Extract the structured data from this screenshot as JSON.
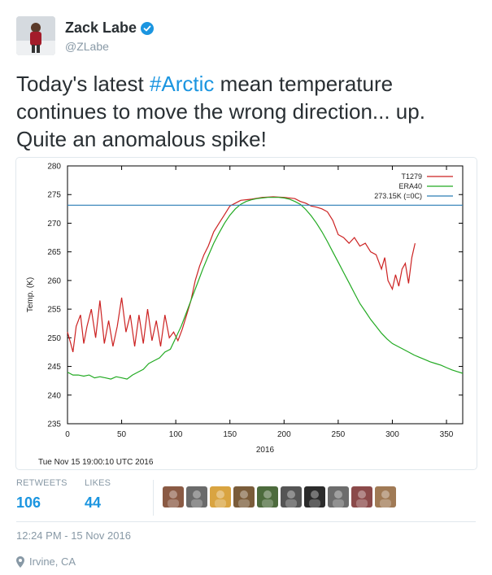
{
  "user": {
    "name": "Zack Labe",
    "handle": "@ZLabe",
    "verified": true,
    "avatar_icon": "user-avatar"
  },
  "tweet": {
    "text_before": "Today's latest",
    "hashtag": "#Arctic",
    "text_after": "mean temperature continues to move the wrong direction... up. Quite an anomalous spike!"
  },
  "media": {
    "timestamp": "Tue Nov 15 19:00:10 UTC 2016"
  },
  "chart_data": {
    "type": "line",
    "xlabel": "2016",
    "ylabel": "Temp. (K)",
    "xlim": [
      0,
      365
    ],
    "ylim": [
      235,
      280
    ],
    "xticks": [
      0,
      50,
      100,
      150,
      200,
      250,
      300,
      350
    ],
    "yticks": [
      235,
      240,
      245,
      250,
      255,
      260,
      265,
      270,
      275,
      280
    ],
    "legend_position": "top-right",
    "series": [
      {
        "name": "T1279",
        "color": "#cc2222",
        "x": [
          0,
          3,
          5,
          8,
          12,
          15,
          18,
          22,
          26,
          30,
          34,
          38,
          42,
          46,
          50,
          54,
          58,
          62,
          66,
          70,
          74,
          78,
          82,
          86,
          90,
          94,
          98,
          102,
          106,
          110,
          114,
          118,
          122,
          126,
          130,
          135,
          140,
          145,
          150,
          155,
          160,
          170,
          180,
          190,
          200,
          210,
          215,
          220,
          225,
          230,
          235,
          240,
          245,
          250,
          255,
          260,
          265,
          270,
          275,
          280,
          285,
          290,
          293,
          296,
          300,
          303,
          306,
          309,
          312,
          315,
          318,
          321
        ],
        "y": [
          251,
          249,
          247.5,
          252,
          254,
          249,
          252,
          255,
          250,
          256.5,
          249,
          253,
          248.5,
          252,
          257,
          251,
          254,
          248.5,
          254,
          249,
          255,
          249.5,
          253,
          248.5,
          254,
          250,
          251,
          249.5,
          251.5,
          254,
          256.5,
          260,
          262.5,
          264.5,
          266,
          268.5,
          270,
          271.5,
          273,
          273.5,
          274,
          274.2,
          274.5,
          274.6,
          274.5,
          274.3,
          273.8,
          273.5,
          273,
          272.8,
          272.5,
          272,
          270.5,
          268,
          267.5,
          266.5,
          267.5,
          266,
          266.5,
          265,
          264.5,
          262,
          264,
          260,
          258.5,
          261,
          259,
          262,
          263,
          259.5,
          264,
          266.5
        ]
      },
      {
        "name": "ERA40",
        "color": "#22aa22",
        "x": [
          0,
          5,
          10,
          15,
          20,
          25,
          30,
          35,
          40,
          45,
          50,
          55,
          60,
          65,
          70,
          75,
          80,
          85,
          90,
          95,
          100,
          105,
          110,
          115,
          120,
          125,
          130,
          135,
          140,
          145,
          150,
          155,
          160,
          165,
          170,
          175,
          180,
          185,
          190,
          195,
          200,
          205,
          210,
          215,
          220,
          225,
          230,
          235,
          240,
          245,
          250,
          255,
          260,
          265,
          270,
          275,
          280,
          285,
          290,
          295,
          300,
          305,
          310,
          315,
          320,
          325,
          330,
          335,
          340,
          345,
          350,
          355,
          360,
          365
        ],
        "y": [
          244,
          243.5,
          243.5,
          243.3,
          243.5,
          243,
          243.2,
          243,
          242.8,
          243.2,
          243,
          242.8,
          243.5,
          244,
          244.5,
          245.5,
          246,
          246.5,
          247.5,
          248,
          250,
          252,
          254.5,
          257,
          259.5,
          262,
          264.3,
          266.5,
          268.3,
          270,
          271.4,
          272.5,
          273.3,
          273.8,
          274.1,
          274.3,
          274.4,
          274.5,
          274.5,
          274.5,
          274.4,
          274.2,
          273.8,
          273.3,
          272.4,
          271.3,
          270,
          268.5,
          266.8,
          265,
          263.2,
          261.4,
          259.6,
          257.8,
          256,
          254.6,
          253.2,
          252,
          250.8,
          249.8,
          249,
          248.5,
          248,
          247.5,
          247,
          246.6,
          246.2,
          245.8,
          245.5,
          245.2,
          244.8,
          244.4,
          244.1,
          243.8
        ]
      },
      {
        "name": "273.15K (=0C)",
        "color": "#2a7db5",
        "x": [
          0,
          365
        ],
        "y": [
          273.15,
          273.15
        ]
      }
    ]
  },
  "stats": {
    "retweets_label": "RETWEETS",
    "retweets": "106",
    "likes_label": "LIKES",
    "likes": "44"
  },
  "likers_colors": [
    "#8a5a44",
    "#6b6b6b",
    "#d9a441",
    "#7a5c3a",
    "#4d6b3d",
    "#555555",
    "#2b2b2b",
    "#6d6d6d",
    "#8b4a4a",
    "#a07a55"
  ],
  "footer": {
    "time": "12:24 PM - 15 Nov 2016",
    "location": "Irvine, CA"
  }
}
